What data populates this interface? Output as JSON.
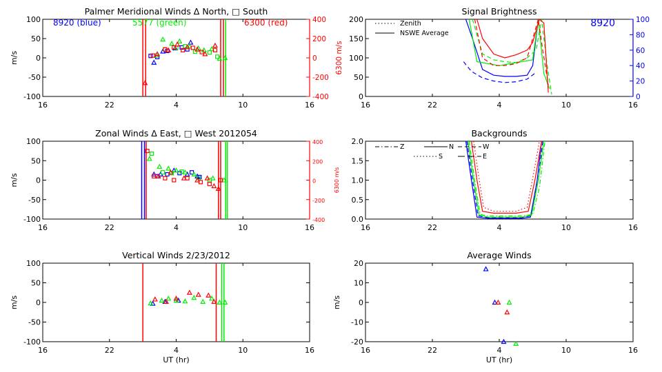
{
  "colors": {
    "blue": "#0000ff",
    "green": "#00ee00",
    "red": "#ff0000",
    "axis": "#000000"
  },
  "chart_data": [
    {
      "id": "meridional",
      "type": "scatter",
      "title": "Palmer Meridional Winds Δ North, □ South",
      "xlabel": "",
      "ylabel": "m/s",
      "ylabel_right": "6300 m/s",
      "xlim": [
        16,
        40
      ],
      "ylim": [
        -100,
        100
      ],
      "y2lim": [
        -400,
        400
      ],
      "x_ticks": [
        16,
        22,
        28,
        34,
        40
      ],
      "x_tick_labels": [
        "16",
        "22",
        "4",
        "10",
        "16"
      ],
      "y_ticks": [
        -100,
        -50,
        0,
        50,
        100
      ],
      "y2_ticks": [
        -400,
        -200,
        0,
        200,
        400
      ],
      "legend": [
        {
          "text": "8920 (blue)",
          "color": "blue"
        },
        {
          "text": "5577 (green)",
          "color": "green"
        },
        {
          "text": "6300 (red)",
          "color": "red"
        }
      ],
      "vlines": [
        {
          "x": 25.0,
          "color": "red"
        },
        {
          "x": 25.25,
          "color": "red"
        },
        {
          "x": 32.0,
          "color": "red"
        },
        {
          "x": 32.25,
          "color": "red"
        },
        {
          "x": 32.45,
          "color": "green"
        }
      ],
      "series": [
        {
          "name": "blue north",
          "color": "blue",
          "marker": "triangle",
          "x": [
            26.0,
            26.8,
            27.9,
            29.3
          ],
          "y": [
            -12,
            17,
            25,
            40
          ]
        },
        {
          "name": "blue south",
          "color": "blue",
          "marker": "square",
          "x": [
            25.7,
            26.3,
            27.2,
            28.5,
            29.0
          ],
          "y": [
            5,
            2,
            18,
            27,
            22
          ]
        },
        {
          "name": "green north",
          "color": "green",
          "marker": "triangle",
          "x": [
            26.8,
            27.6,
            28.3,
            29.2,
            30.0,
            30.5,
            31.2,
            31.9,
            32.4
          ],
          "y": [
            48,
            37,
            43,
            30,
            25,
            20,
            23,
            -2,
            0
          ]
        },
        {
          "name": "green south",
          "color": "green",
          "marker": "square",
          "x": [
            26.2,
            27.0,
            28.0,
            28.8,
            29.7,
            31.0,
            31.7
          ],
          "y": [
            6,
            22,
            26,
            30,
            16,
            14,
            3
          ]
        },
        {
          "name": "red north",
          "color": "red",
          "marker": "triangle",
          "x": [
            25.2,
            26.3,
            27.3,
            28.1,
            29.0,
            29.9,
            30.6,
            31.5
          ],
          "y": [
            -65,
            10,
            20,
            35,
            28,
            22,
            10,
            32
          ]
        },
        {
          "name": "red south",
          "color": "red",
          "marker": "square",
          "x": [
            25.9,
            27.0,
            27.8,
            28.6,
            29.5,
            30.3,
            31.5
          ],
          "y": [
            6,
            22,
            27,
            20,
            26,
            15,
            20
          ]
        }
      ]
    },
    {
      "id": "zonal",
      "type": "scatter",
      "title": "Zonal Winds Δ East, □ West 2012054",
      "xlabel": "",
      "ylabel": "m/s",
      "ylabel_right": "6300 m/s",
      "xlim": [
        16,
        40
      ],
      "ylim": [
        -100,
        100
      ],
      "y2lim": [
        -400,
        400
      ],
      "x_ticks": [
        16,
        22,
        28,
        34,
        40
      ],
      "x_tick_labels": [
        "16",
        "22",
        "4",
        "10",
        "16"
      ],
      "y_ticks": [
        -100,
        -50,
        0,
        50,
        100
      ],
      "y2_ticks": [
        -400,
        -200,
        0,
        200,
        400
      ],
      "vlines": [
        {
          "x": 24.9,
          "color": "blue"
        },
        {
          "x": 25.15,
          "color": "blue"
        },
        {
          "x": 25.3,
          "color": "red"
        },
        {
          "x": 31.8,
          "color": "red"
        },
        {
          "x": 32.0,
          "color": "red"
        },
        {
          "x": 32.45,
          "color": "green"
        },
        {
          "x": 32.6,
          "color": "green"
        }
      ],
      "series": [
        {
          "name": "blue east",
          "color": "blue",
          "marker": "triangle",
          "x": [
            26.0,
            26.6,
            27.8,
            29.0,
            29.9
          ],
          "y": [
            15,
            15,
            25,
            15,
            10
          ]
        },
        {
          "name": "blue west",
          "color": "blue",
          "marker": "square",
          "x": [
            26.3,
            27.2,
            28.3,
            29.4,
            30.1
          ],
          "y": [
            10,
            15,
            18,
            20,
            8
          ]
        },
        {
          "name": "green east",
          "color": "green",
          "marker": "triangle",
          "x": [
            25.6,
            26.5,
            27.3,
            28.0,
            28.8,
            29.6,
            31.3,
            32.3
          ],
          "y": [
            55,
            35,
            30,
            25,
            20,
            15,
            5,
            0
          ]
        },
        {
          "name": "green west",
          "color": "green",
          "marker": "square",
          "x": [
            25.8,
            26.8,
            27.6,
            28.5,
            30.0,
            31.0
          ],
          "y": [
            68,
            20,
            18,
            22,
            5,
            0
          ]
        },
        {
          "name": "red east",
          "color": "red",
          "marker": "triangle",
          "x": [
            26.4,
            27.5,
            28.7,
            29.9,
            30.8,
            31.4,
            31.8
          ],
          "y": [
            10,
            20,
            5,
            0,
            5,
            -15,
            -22
          ]
        },
        {
          "name": "red west",
          "color": "red",
          "marker": "square",
          "x": [
            25.4,
            26.0,
            27.0,
            27.8,
            29.0,
            30.2,
            31.0,
            32.0
          ],
          "y": [
            75,
            10,
            5,
            0,
            5,
            -5,
            -10,
            0
          ]
        }
      ]
    },
    {
      "id": "vertical",
      "type": "scatter",
      "title": "Vertical Winds 2/23/2012",
      "xlabel": "UT (hr)",
      "ylabel": "m/s",
      "xlim": [
        16,
        40
      ],
      "ylim": [
        -100,
        100
      ],
      "x_ticks": [
        16,
        22,
        28,
        34,
        40
      ],
      "x_tick_labels": [
        "16",
        "22",
        "4",
        "10",
        "16"
      ],
      "y_ticks": [
        -100,
        -50,
        0,
        50,
        100
      ],
      "vlines": [
        {
          "x": 25.0,
          "color": "red"
        },
        {
          "x": 31.6,
          "color": "red"
        },
        {
          "x": 32.1,
          "color": "green"
        },
        {
          "x": 32.3,
          "color": "green"
        }
      ],
      "series": [
        {
          "name": "blue",
          "color": "blue",
          "marker": "triangle",
          "x": [
            25.9,
            27.0,
            28.2
          ],
          "y": [
            -3,
            2,
            5
          ]
        },
        {
          "name": "green",
          "color": "green",
          "marker": "triangle",
          "x": [
            25.7,
            26.7,
            27.3,
            28.0,
            28.8,
            29.6,
            30.4,
            31.2,
            31.9,
            32.4
          ],
          "y": [
            -2,
            5,
            10,
            5,
            3,
            12,
            2,
            10,
            0,
            0
          ]
        },
        {
          "name": "red",
          "color": "red",
          "marker": "triangle",
          "x": [
            26.1,
            27.1,
            28.0,
            29.2,
            30.0,
            30.9,
            31.4
          ],
          "y": [
            8,
            2,
            10,
            25,
            20,
            18,
            2
          ]
        }
      ]
    },
    {
      "id": "brightness",
      "type": "line",
      "title": "Signal Brightness",
      "xlabel": "",
      "ylabel": "",
      "xlim": [
        16,
        40
      ],
      "ylim": [
        0,
        200
      ],
      "y2lim": [
        0,
        100
      ],
      "x_ticks": [
        16,
        22,
        28,
        34,
        40
      ],
      "x_tick_labels": [
        "16",
        "22",
        "4",
        "10",
        "16"
      ],
      "y_ticks": [
        0,
        50,
        100,
        150,
        200
      ],
      "y2_ticks": [
        0,
        20,
        40,
        60,
        80,
        100
      ],
      "corner_label": "8920",
      "legend": [
        {
          "text": "Zenith",
          "style": "dotted"
        },
        {
          "text": "NSWE Average",
          "style": "solid"
        }
      ],
      "series": [
        {
          "name": "blue solid",
          "color": "blue",
          "style": "solid",
          "x": [
            25.0,
            25.6,
            26.5,
            27.5,
            28.5,
            29.5,
            30.5,
            31.0,
            31.5
          ],
          "y": [
            200,
            150,
            70,
            55,
            52,
            52,
            55,
            80,
            200
          ]
        },
        {
          "name": "blue dashed",
          "color": "blue",
          "style": "dashed",
          "x": [
            24.8,
            25.5,
            26.5,
            27.5,
            28.5,
            29.5,
            30.5,
            31.2
          ],
          "y": [
            90,
            65,
            48,
            40,
            36,
            38,
            45,
            60
          ]
        },
        {
          "name": "green solid",
          "color": "green",
          "style": "solid",
          "x": [
            25.3,
            26.0,
            27.0,
            28.0,
            29.0,
            30.0,
            31.0,
            31.5,
            32.0,
            32.5
          ],
          "y": [
            200,
            90,
            85,
            80,
            85,
            90,
            95,
            200,
            60,
            20
          ]
        },
        {
          "name": "green dashed",
          "color": "green",
          "style": "dashed",
          "x": [
            25.6,
            26.5,
            27.5,
            28.5,
            29.5,
            30.5,
            31.3,
            31.8,
            32.3,
            32.7
          ],
          "y": [
            200,
            110,
            95,
            90,
            88,
            100,
            120,
            200,
            80,
            5
          ]
        },
        {
          "name": "red solid",
          "color": "red",
          "style": "solid",
          "x": [
            26.0,
            26.5,
            27.5,
            28.5,
            29.5,
            30.5,
            31.0,
            31.6,
            32.0,
            32.4
          ],
          "y": [
            200,
            150,
            110,
            100,
            108,
            120,
            140,
            200,
            190,
            10
          ]
        },
        {
          "name": "red dashed",
          "color": "red",
          "style": "dashed",
          "x": [
            25.8,
            26.5,
            27.5,
            28.5,
            29.5,
            30.5,
            31.5,
            31.9,
            32.4
          ],
          "y": [
            200,
            100,
            80,
            80,
            85,
            100,
            200,
            120,
            30
          ]
        }
      ]
    },
    {
      "id": "backgrounds",
      "type": "line",
      "title": "Backgrounds",
      "xlabel": "",
      "ylabel": "",
      "xlim": [
        16,
        40
      ],
      "ylim": [
        0,
        2
      ],
      "x_ticks": [
        16,
        22,
        28,
        34,
        40
      ],
      "x_tick_labels": [
        "16",
        "22",
        "4",
        "10",
        "16"
      ],
      "y_ticks": [
        0,
        0.5,
        1.0,
        1.5,
        2.0
      ],
      "y_tick_labels": [
        "0.0",
        "0.5",
        "1.0",
        "1.5",
        "2.0"
      ],
      "legend": [
        {
          "text": "Z",
          "style": "dashdot"
        },
        {
          "text": "N",
          "style": "solid"
        },
        {
          "text": "W",
          "style": "dashed"
        },
        {
          "text": "S",
          "style": "dotted"
        },
        {
          "text": "E",
          "style": "longdash"
        }
      ],
      "series": [
        {
          "name": "blue curve",
          "color": "blue",
          "style": "solid",
          "x": [
            25.0,
            25.5,
            26.0,
            27.0,
            28.5,
            30.0,
            30.8,
            31.4,
            31.8
          ],
          "y": [
            2.0,
            1.0,
            0.05,
            0.02,
            0.02,
            0.02,
            0.05,
            1.0,
            2.0
          ]
        },
        {
          "name": "blue dashed",
          "color": "blue",
          "style": "dashed",
          "x": [
            25.1,
            25.6,
            26.1,
            27.0,
            28.5,
            30.0,
            30.8,
            31.5,
            31.9
          ],
          "y": [
            2.0,
            1.0,
            0.08,
            0.04,
            0.04,
            0.04,
            0.08,
            1.0,
            2.0
          ]
        },
        {
          "name": "green curve",
          "color": "green",
          "style": "solid",
          "x": [
            25.2,
            25.7,
            26.2,
            27.0,
            28.5,
            30.0,
            30.9,
            31.5,
            32.0
          ],
          "y": [
            2.0,
            1.0,
            0.1,
            0.05,
            0.05,
            0.05,
            0.1,
            1.0,
            2.0
          ]
        },
        {
          "name": "green dashdot",
          "color": "green",
          "style": "dashdot",
          "x": [
            25.3,
            25.9,
            26.3,
            27.0,
            28.5,
            30.0,
            31.0,
            31.6,
            32.1
          ],
          "y": [
            2.0,
            0.8,
            0.12,
            0.08,
            0.08,
            0.08,
            0.12,
            0.8,
            2.0
          ]
        },
        {
          "name": "red curve",
          "color": "red",
          "style": "solid",
          "x": [
            25.5,
            26.0,
            26.5,
            27.5,
            28.5,
            29.5,
            30.6,
            31.2,
            31.8
          ],
          "y": [
            2.0,
            1.0,
            0.2,
            0.15,
            0.15,
            0.15,
            0.2,
            1.0,
            2.0
          ]
        },
        {
          "name": "red dotted",
          "color": "red",
          "style": "dotted",
          "x": [
            25.7,
            26.1,
            26.6,
            27.5,
            28.5,
            29.5,
            30.5,
            31.1,
            31.6
          ],
          "y": [
            2.0,
            1.2,
            0.3,
            0.2,
            0.2,
            0.2,
            0.3,
            1.2,
            2.0
          ]
        }
      ]
    },
    {
      "id": "average",
      "type": "scatter",
      "title": "Average Winds",
      "xlabel": "UT (hr)",
      "ylabel": "m/s",
      "xlim": [
        16,
        40
      ],
      "ylim": [
        -20,
        20
      ],
      "x_ticks": [
        16,
        22,
        28,
        34,
        40
      ],
      "x_tick_labels": [
        "16",
        "22",
        "4",
        "10",
        "16"
      ],
      "y_ticks": [
        -20,
        -10,
        0,
        10,
        20
      ],
      "series": [
        {
          "name": "blue",
          "color": "blue",
          "marker": "triangle",
          "x": [
            26.8,
            27.6,
            28.4
          ],
          "y": [
            17,
            0,
            -20
          ]
        },
        {
          "name": "green",
          "color": "green",
          "marker": "triangle",
          "x": [
            28.9,
            29.5
          ],
          "y": [
            0,
            -21
          ]
        },
        {
          "name": "red",
          "color": "red",
          "marker": "triangle",
          "x": [
            27.9,
            28.7
          ],
          "y": [
            0,
            -5
          ]
        }
      ]
    }
  ]
}
